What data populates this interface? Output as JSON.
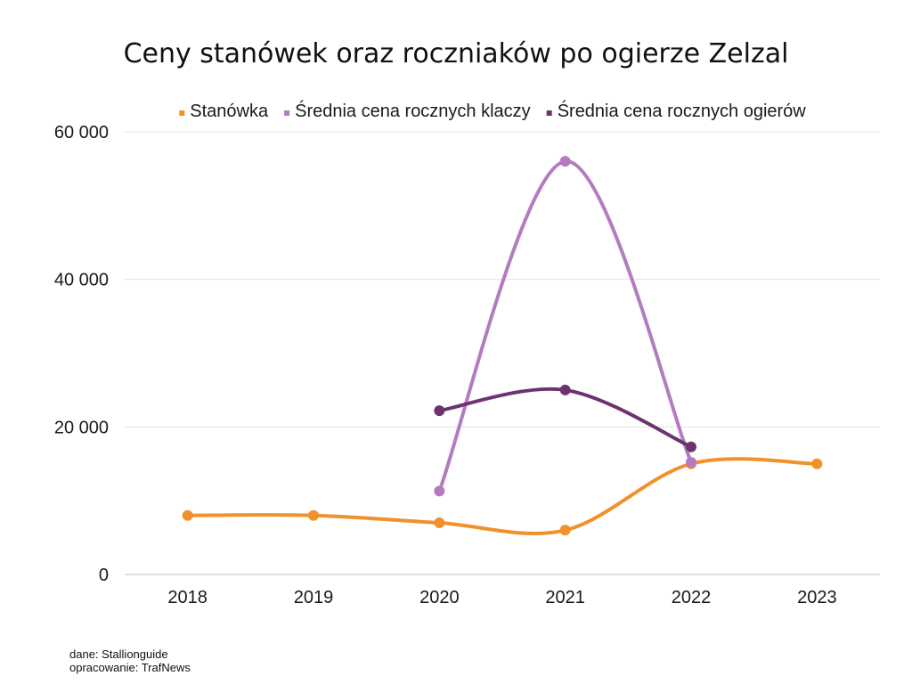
{
  "chart_data": {
    "type": "line",
    "title": "Ceny stanówek oraz roczniaków po ogierze Zelzal",
    "xlabel": "",
    "ylabel": "",
    "categories": [
      "2018",
      "2019",
      "2020",
      "2021",
      "2022",
      "2023"
    ],
    "ylim": [
      0,
      60000
    ],
    "yticks": [
      0,
      20000,
      40000,
      60000
    ],
    "ytick_labels": [
      "0",
      "20 000",
      "40 000",
      "60 000"
    ],
    "grid": true,
    "legend_position": "top",
    "series": [
      {
        "name": "Stanówka",
        "color": "#F0912A",
        "values": [
          8000,
          8000,
          7000,
          6000,
          15000,
          15000
        ]
      },
      {
        "name": "Średnia cena rocznych klaczy",
        "color": "#B47CBF",
        "values": [
          null,
          null,
          11300,
          56000,
          15200,
          null
        ]
      },
      {
        "name": "Średnia cena rocznych ogierów",
        "color": "#6B3470",
        "values": [
          null,
          null,
          22200,
          25000,
          17300,
          null
        ]
      }
    ]
  },
  "source": {
    "line1": "dane: Stallionguide",
    "line2": "opracowanie: TrafNews"
  }
}
